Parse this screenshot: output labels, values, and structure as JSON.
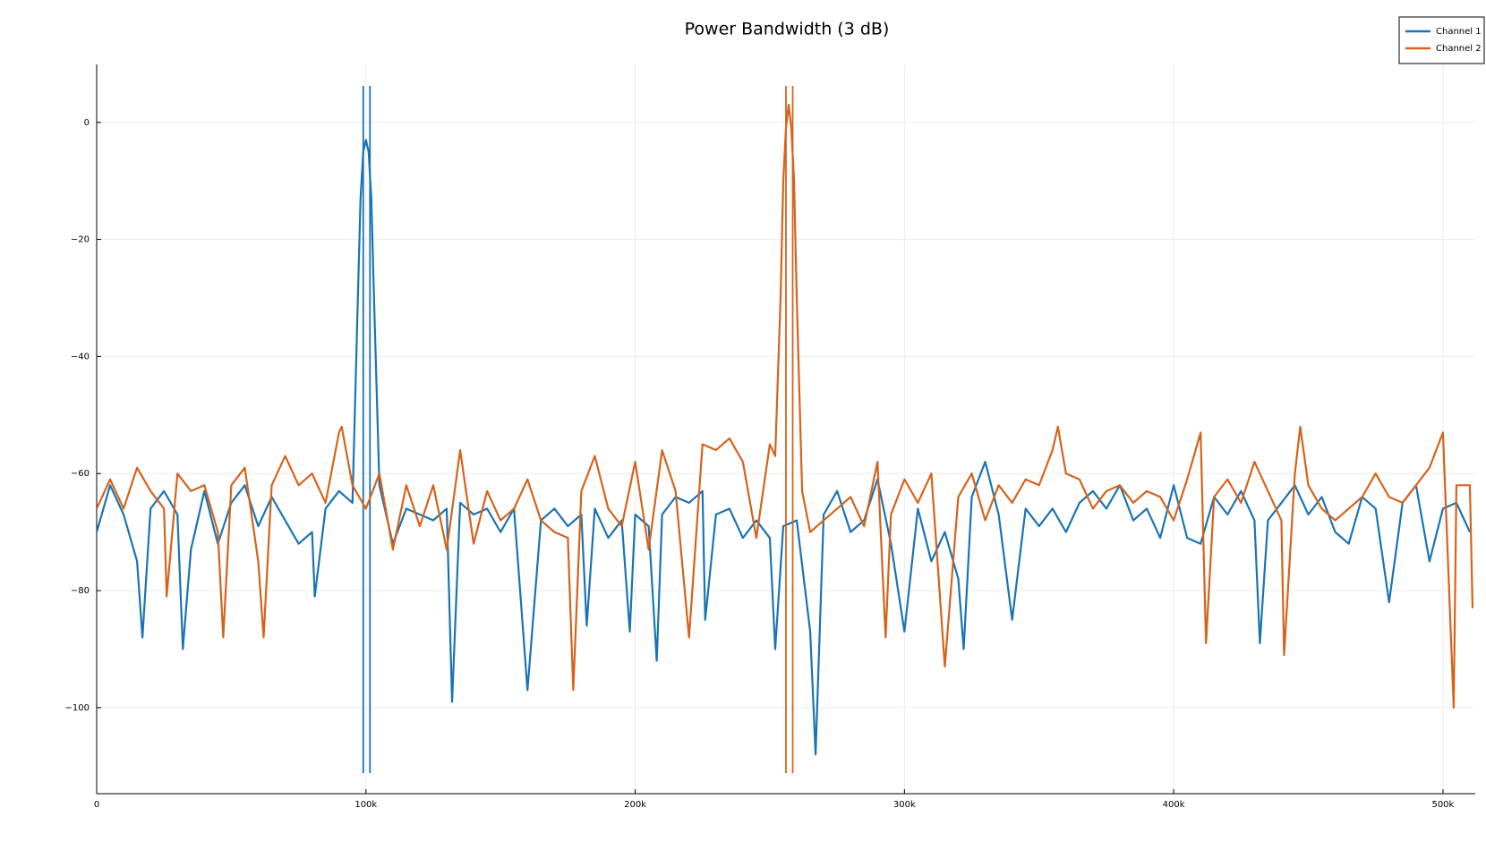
{
  "chart_data": {
    "type": "line",
    "title": "Power Bandwidth (3 dB)",
    "xlim": [
      0,
      512000
    ],
    "ylim": [
      -114.7,
      9.9
    ],
    "xticks": [
      0,
      {
        "value": 100000,
        "label": "100k"
      },
      {
        "value": 200000,
        "label": "200k"
      },
      {
        "value": 300000,
        "label": "300k"
      },
      {
        "value": 400000,
        "label": "400k"
      },
      {
        "value": 500000,
        "label": "500k"
      }
    ],
    "yticks": [
      0,
      {
        "value": -20,
        "label": "−20"
      },
      {
        "value": -40,
        "label": "−40"
      },
      {
        "value": -60,
        "label": "−60"
      },
      {
        "value": -80,
        "label": "−80"
      },
      {
        "value": -100,
        "label": "−100"
      }
    ],
    "grid": true,
    "legend": "top-right",
    "series": [
      {
        "name": "Channel 1",
        "color": "#1a74b3",
        "bandwidth": [
          99000,
          101500
        ],
        "x": [
          0,
          5000,
          10000,
          15000,
          17000,
          20000,
          25000,
          30000,
          32000,
          35000,
          40000,
          45000,
          50000,
          55000,
          60000,
          65000,
          70000,
          75000,
          80000,
          81000,
          85000,
          90000,
          95000,
          97000,
          98000,
          99000,
          100000,
          101000,
          102000,
          103000,
          105000,
          110000,
          115000,
          120000,
          125000,
          130000,
          132000,
          135000,
          140000,
          145000,
          150000,
          155000,
          160000,
          165000,
          170000,
          175000,
          180000,
          182000,
          185000,
          190000,
          195000,
          198000,
          200000,
          205000,
          208000,
          210000,
          215000,
          220000,
          225000,
          226000,
          230000,
          235000,
          240000,
          245000,
          250000,
          252000,
          255000,
          260000,
          265000,
          267000,
          270000,
          275000,
          280000,
          285000,
          290000,
          295000,
          300000,
          305000,
          310000,
          315000,
          320000,
          322000,
          325000,
          330000,
          335000,
          340000,
          345000,
          350000,
          355000,
          360000,
          365000,
          370000,
          375000,
          380000,
          385000,
          390000,
          395000,
          400000,
          405000,
          410000,
          415000,
          420000,
          425000,
          430000,
          432000,
          435000,
          440000,
          445000,
          450000,
          455000,
          460000,
          465000,
          470000,
          475000,
          480000,
          485000,
          490000,
          495000,
          500000,
          505000,
          510000
        ],
        "values": [
          -70,
          -62,
          -67,
          -75,
          -88,
          -66,
          -63,
          -67,
          -90,
          -73,
          -63,
          -72,
          -65,
          -62,
          -69,
          -64,
          -68,
          -72,
          -70,
          -81,
          -66,
          -63,
          -65,
          -30,
          -13,
          -5,
          -3,
          -5,
          -13,
          -30,
          -62,
          -72,
          -66,
          -67,
          -68,
          -66,
          -99,
          -65,
          -67,
          -66,
          -70,
          -66,
          -97,
          -68,
          -66,
          -69,
          -67,
          -86,
          -66,
          -71,
          -68,
          -87,
          -67,
          -69,
          -92,
          -67,
          -64,
          -65,
          -63,
          -85,
          -67,
          -66,
          -71,
          -68,
          -71,
          -90,
          -69,
          -68,
          -87,
          -108,
          -67,
          -63,
          -70,
          -68,
          -61,
          -72,
          -87,
          -66,
          -75,
          -70,
          -78,
          -90,
          -64,
          -58,
          -67,
          -85,
          -66,
          -69,
          -66,
          -70,
          -65,
          -63,
          -66,
          -62,
          -68,
          -66,
          -71,
          -62,
          -71,
          -72,
          -64,
          -67,
          -63,
          -68,
          -89,
          -68,
          -65,
          -62,
          -67,
          -64,
          -70,
          -72,
          -64,
          -66,
          -82,
          -65,
          -62,
          -75,
          -66,
          -65,
          -70
        ]
      },
      {
        "name": "Channel 2",
        "color": "#d5631c",
        "bandwidth": [
          256000,
          258500
        ],
        "x": [
          0,
          5000,
          10000,
          15000,
          20000,
          25000,
          26000,
          30000,
          35000,
          40000,
          45000,
          47000,
          50000,
          55000,
          60000,
          62000,
          65000,
          70000,
          75000,
          80000,
          85000,
          90000,
          91000,
          95000,
          100000,
          105000,
          110000,
          115000,
          120000,
          125000,
          130000,
          135000,
          140000,
          145000,
          150000,
          155000,
          160000,
          165000,
          170000,
          175000,
          177000,
          180000,
          185000,
          190000,
          195000,
          200000,
          205000,
          210000,
          215000,
          220000,
          225000,
          230000,
          235000,
          240000,
          245000,
          250000,
          252000,
          254000,
          255000,
          256000,
          257000,
          258000,
          259000,
          260000,
          262000,
          265000,
          270000,
          275000,
          280000,
          285000,
          290000,
          293000,
          295000,
          300000,
          305000,
          310000,
          315000,
          320000,
          325000,
          330000,
          335000,
          340000,
          345000,
          350000,
          355000,
          357000,
          360000,
          365000,
          370000,
          375000,
          380000,
          385000,
          390000,
          395000,
          400000,
          405000,
          410000,
          412000,
          415000,
          420000,
          425000,
          430000,
          435000,
          440000,
          441000,
          445000,
          447000,
          450000,
          455000,
          460000,
          465000,
          470000,
          475000,
          480000,
          485000,
          490000,
          495000,
          500000,
          504000,
          505000,
          510000,
          511000
        ],
        "values": [
          -66,
          -61,
          -66,
          -59,
          -63,
          -66,
          -81,
          -60,
          -63,
          -62,
          -70,
          -88,
          -62,
          -59,
          -75,
          -88,
          -62,
          -57,
          -62,
          -60,
          -65,
          -53,
          -52,
          -62,
          -66,
          -60,
          -73,
          -62,
          -69,
          -62,
          -73,
          -56,
          -72,
          -63,
          -68,
          -66,
          -61,
          -68,
          -70,
          -71,
          -97,
          -63,
          -57,
          -66,
          -69,
          -58,
          -73,
          -56,
          -63,
          -88,
          -55,
          -56,
          -54,
          -58,
          -71,
          -55,
          -57,
          -30,
          -10,
          -1,
          3,
          -1,
          -10,
          -30,
          -63,
          -70,
          -68,
          -66,
          -64,
          -69,
          -58,
          -88,
          -67,
          -61,
          -65,
          -60,
          -93,
          -64,
          -60,
          -68,
          -62,
          -65,
          -61,
          -62,
          -56,
          -52,
          -60,
          -61,
          -66,
          -63,
          -62,
          -65,
          -63,
          -64,
          -68,
          -61,
          -53,
          -89,
          -64,
          -61,
          -65,
          -58,
          -63,
          -68,
          -91,
          -60,
          -52,
          -62,
          -66,
          -68,
          -66,
          -64,
          -60,
          -64,
          -65,
          -62,
          -59,
          -53,
          -100,
          -62,
          -62,
          -83
        ]
      }
    ]
  }
}
